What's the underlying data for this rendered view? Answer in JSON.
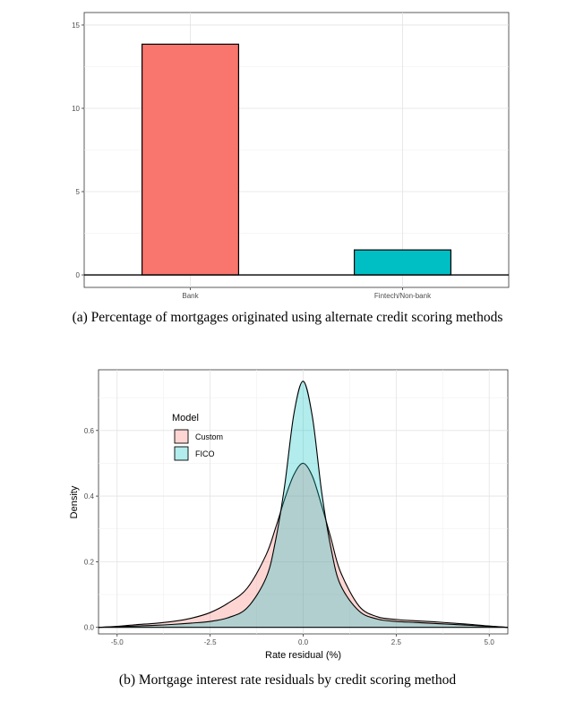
{
  "chart_data": [
    {
      "type": "bar",
      "categories": [
        "Bank",
        "Fintech/Non-bank"
      ],
      "values": [
        13.85,
        1.5
      ],
      "colors": [
        "#F8766D",
        "#00BFC4"
      ],
      "ylim": [
        0,
        15
      ],
      "yticks": [
        "0",
        "5",
        "10",
        "15"
      ],
      "grid": true,
      "caption": "(a) Percentage of mortgages originated using alternate credit scoring methods"
    },
    {
      "type": "area",
      "xlabel": "Rate residual (%)",
      "ylabel": "Density",
      "xlim": [
        -5.5,
        5.5
      ],
      "ylim": [
        0,
        0.77
      ],
      "xticks": [
        "-5.0",
        "-2.5",
        "0.0",
        "2.5",
        "5.0"
      ],
      "yticks": [
        "0.0",
        "0.2",
        "0.4",
        "0.6"
      ],
      "grid": true,
      "legend": {
        "title": "Model",
        "position": "top-left"
      },
      "series": [
        {
          "name": "Custom",
          "color": "#F8766D",
          "x": [
            -5.5,
            -5.0,
            -4.5,
            -4.0,
            -3.5,
            -3.0,
            -2.5,
            -2.0,
            -1.5,
            -1.0,
            -0.75,
            -0.5,
            -0.25,
            0.0,
            0.25,
            0.5,
            0.75,
            1.0,
            1.5,
            2.0,
            2.5,
            3.0,
            3.5,
            4.0,
            4.5,
            5.0,
            5.5
          ],
          "y": [
            0.0,
            0.003,
            0.008,
            0.012,
            0.018,
            0.028,
            0.045,
            0.075,
            0.12,
            0.22,
            0.3,
            0.39,
            0.465,
            0.5,
            0.46,
            0.37,
            0.27,
            0.17,
            0.065,
            0.032,
            0.024,
            0.02,
            0.017,
            0.013,
            0.009,
            0.004,
            0.0
          ]
        },
        {
          "name": "FICO",
          "color": "#00BFC4",
          "x": [
            -5.5,
            -5.0,
            -4.5,
            -4.0,
            -3.5,
            -3.0,
            -2.5,
            -2.0,
            -1.5,
            -1.0,
            -0.75,
            -0.5,
            -0.25,
            0.0,
            0.25,
            0.5,
            0.75,
            1.0,
            1.5,
            2.0,
            2.5,
            3.0,
            3.5,
            4.0,
            4.5,
            5.0,
            5.5
          ],
          "y": [
            0.0,
            0.002,
            0.004,
            0.006,
            0.009,
            0.013,
            0.018,
            0.03,
            0.06,
            0.15,
            0.26,
            0.43,
            0.65,
            0.75,
            0.64,
            0.41,
            0.24,
            0.13,
            0.05,
            0.025,
            0.018,
            0.015,
            0.012,
            0.009,
            0.006,
            0.003,
            0.0
          ]
        }
      ],
      "caption": "(b) Mortgage interest rate residuals by credit scoring method"
    }
  ]
}
